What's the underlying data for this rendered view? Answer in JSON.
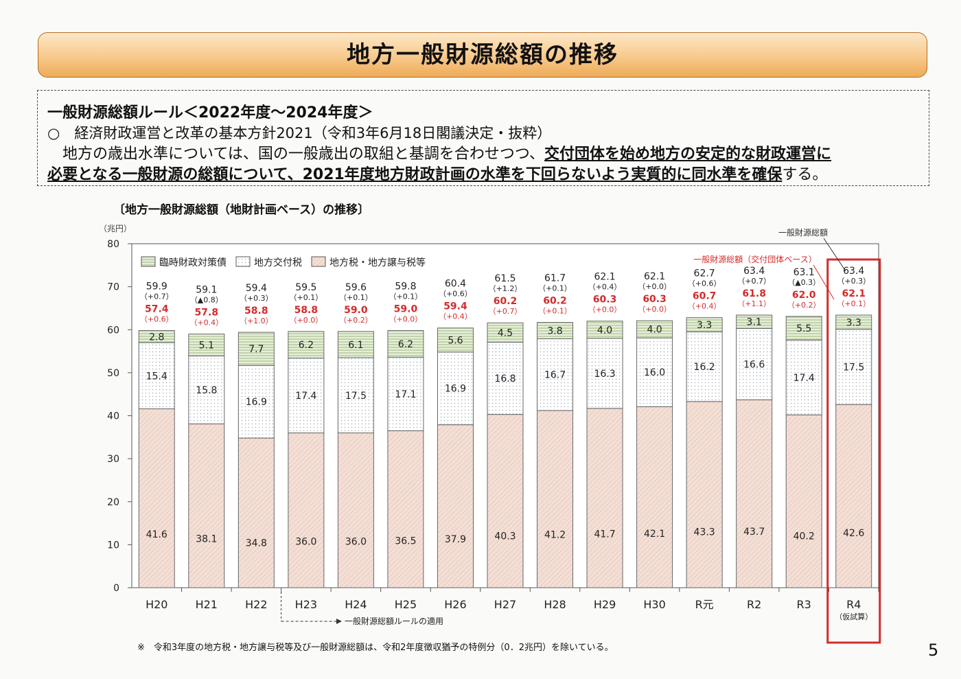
{
  "title": "地方一般財源総額の推移",
  "rule": {
    "heading": "一般財源総額ルール＜2022年度～2024年度＞",
    "item": "○　経済財政運営と改革の基本方針2021（令和3年6月18日閣議決定・抜粋）",
    "body_plain_1": "地方の歳出水準については、国の一般歳出の取組と基調を合わせつつ、",
    "body_underline_1": "交付団体を始め地方の安定的な財政運営に",
    "body_underline_2": "必要となる一般財源の総額について、2021年度地方財政計画の水準を下回らないよう実質的に同水準を確保",
    "body_plain_2": "する。"
  },
  "subtitle": "〔地方一般財源総額（地財計画ベース）の推移〕",
  "footnote": "※　令和3年度の地方税・地方譲与税等及び一般財源総額は、令和2年度徴収猶予の特例分（0．2兆円）を除いている。",
  "page_number": "5",
  "chart_data": {
    "type": "bar",
    "stacked": true,
    "unit_label": "（兆円）",
    "ylim": [
      0,
      80
    ],
    "yticks": [
      0,
      10,
      20,
      30,
      40,
      50,
      60,
      70,
      80
    ],
    "categories": [
      "H20",
      "H21",
      "H22",
      "H23",
      "H24",
      "H25",
      "H26",
      "H27",
      "H28",
      "H29",
      "H30",
      "R元",
      "R2",
      "R3",
      "R4"
    ],
    "category_sub": {
      "R4": "（仮試算）"
    },
    "series": [
      {
        "name": "地方税・地方譲与税等",
        "values": [
          41.6,
          38.1,
          34.8,
          36.0,
          36.0,
          36.5,
          37.9,
          40.3,
          41.2,
          41.7,
          42.1,
          43.3,
          43.7,
          40.2,
          42.6
        ],
        "color": "#f2ddd5"
      },
      {
        "name": "地方交付税",
        "values": [
          15.4,
          15.8,
          16.9,
          17.4,
          17.5,
          17.1,
          16.9,
          16.8,
          16.7,
          16.3,
          16.0,
          16.2,
          16.6,
          17.4,
          17.5
        ],
        "color": "#ffffff"
      },
      {
        "name": "臨時財政対策債",
        "values": [
          2.8,
          5.1,
          7.7,
          6.2,
          6.1,
          6.2,
          5.6,
          4.5,
          3.8,
          4.0,
          4.0,
          3.3,
          3.1,
          5.5,
          3.3
        ],
        "color": "#e3efd4"
      }
    ],
    "legend": [
      "臨時財政対策債",
      "地方交付税",
      "地方税・地方譲与税等"
    ],
    "totals": [
      "59.9",
      "59.1",
      "59.4",
      "59.5",
      "59.6",
      "59.8",
      "60.4",
      "61.5",
      "61.7",
      "62.1",
      "62.1",
      "62.7",
      "63.4",
      "63.1",
      "63.4"
    ],
    "totals_change": [
      "（+0.7）",
      "（▲0.8）",
      "（+0.3）",
      "（+0.1）",
      "（+0.1）",
      "（+0.1）",
      "（+0.6）",
      "（+1.2）",
      "（+0.1）",
      "（+0.4）",
      "（+0.0）",
      "（+0.6）",
      "（+0.7）",
      "（▲0.3）",
      "（+0.3）"
    ],
    "kofu_totals": [
      "57.4",
      "57.8",
      "58.8",
      "58.8",
      "59.0",
      "59.0",
      "59.4",
      "60.2",
      "60.2",
      "60.3",
      "60.3",
      "60.7",
      "61.8",
      "62.0",
      "62.1"
    ],
    "kofu_change": [
      "（+0.6）",
      "（+0.4）",
      "（+1.0）",
      "（+0.0）",
      "（+0.2）",
      "（+0.0）",
      "（+0.4）",
      "（+0.7）",
      "（+0.1）",
      "（+0.0）",
      "（+0.0）",
      "（+0.4）",
      "（+1.1）",
      "（+0.2）",
      "（+0.1）"
    ],
    "annotation_total": "一般財源総額",
    "annotation_kofu": "一般財源総額（交付団体ベース）",
    "rule_applied_note": "一般財源総額ルールの適用",
    "highlight_category": "R4",
    "accent_red": "#d42a2a"
  }
}
